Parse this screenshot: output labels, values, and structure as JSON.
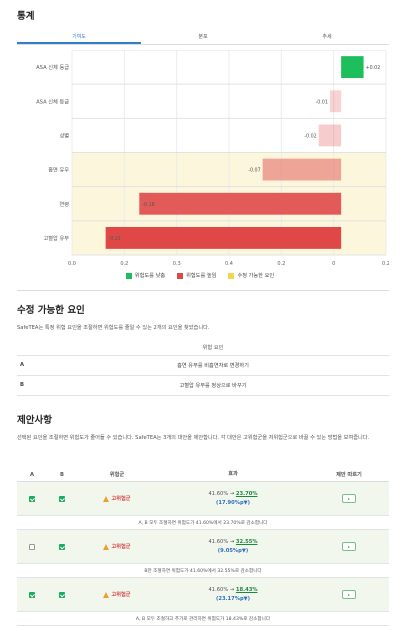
{
  "stats": {
    "title": "통계"
  },
  "tabs": [
    {
      "label": "기여도",
      "active": true
    },
    {
      "label": "분포",
      "active": false
    },
    {
      "label": "추세",
      "active": false
    }
  ],
  "chart_data": {
    "type": "bar",
    "orientation": "horizontal",
    "categories": [
      "ASA 신체 등급",
      "ASA 신체 등급",
      "성별",
      "흡연 유무",
      "연령",
      "고혈압 유무"
    ],
    "values": [
      0.02,
      -0.01,
      -0.02,
      -0.07,
      -0.18,
      -0.21
    ],
    "value_labels": [
      "+0.02",
      "-0.01",
      "-0.02",
      "-0.07",
      "-0.18",
      "-0.21"
    ],
    "highlighted_categories": [
      3,
      4,
      5
    ],
    "xlim": [
      -0.24,
      0.04
    ],
    "x_ticks": [
      "0.0",
      "0.2",
      "0.3",
      "0.4",
      "0.2",
      "0",
      "0.2"
    ],
    "colors": {
      "increase": "#1dbf5c",
      "decrease": "#e04848",
      "modifiable_bg": "#fbf6dc"
    }
  },
  "legend": [
    {
      "label": "위험도를 낮춤",
      "color": "#1dbf5c"
    },
    {
      "label": "위험도를 높임",
      "color": "#e04848"
    },
    {
      "label": "수정 가능한 요인",
      "color": "#f3d64a"
    }
  ],
  "factors": {
    "title": "수정 가능한 요인",
    "description": "SafeTEA는 특정 위험 요인을 조절하면 위험도를 줄일 수 있는 2개의 요인을 찾았습니다.",
    "header": "위험 요인",
    "rows": [
      {
        "key": "A",
        "value": "흡연 유무를 비흡연자로 변경하기"
      },
      {
        "key": "B",
        "value": "고혈압 유무를 정상으로 바꾸기"
      }
    ]
  },
  "suggestions": {
    "title": "제안사항",
    "description": "선택된 요인을 조절하면 위험도가 줄어들 수 있습니다. SafeTEA는 3개의 대안을 제안합니다. 각 대안은 고위험군을 저위험군으로 바꿀 수 있는 방법을 보여줍니다.",
    "columns": [
      "A",
      "B",
      "위험군",
      "효과",
      "제안 따르기"
    ],
    "rows": [
      {
        "a": true,
        "b": true,
        "risk": "고위험군",
        "old": "41.60%",
        "new": "23.70%",
        "delta": "(17.90%p▼)",
        "note": "A, B 모두 조절하면 위험도가 41.60%에서 23.70%로 감소합니다"
      },
      {
        "a": false,
        "b": true,
        "risk": "고위험군",
        "old": "41.60%",
        "new": "32.55%",
        "delta": "(9.05%p▼)",
        "note": "B만 조절하면 위험도가 41.60%에서 32.55%로 감소합니다"
      },
      {
        "a": true,
        "b": true,
        "risk": "고위험군",
        "old": "41.60%",
        "new": "18.43%",
        "delta": "(23.17%p▼)",
        "note": "A, B 모두 조절하고 추가로 관리하면 위험도가 18.43%로 감소합니다"
      }
    ]
  }
}
